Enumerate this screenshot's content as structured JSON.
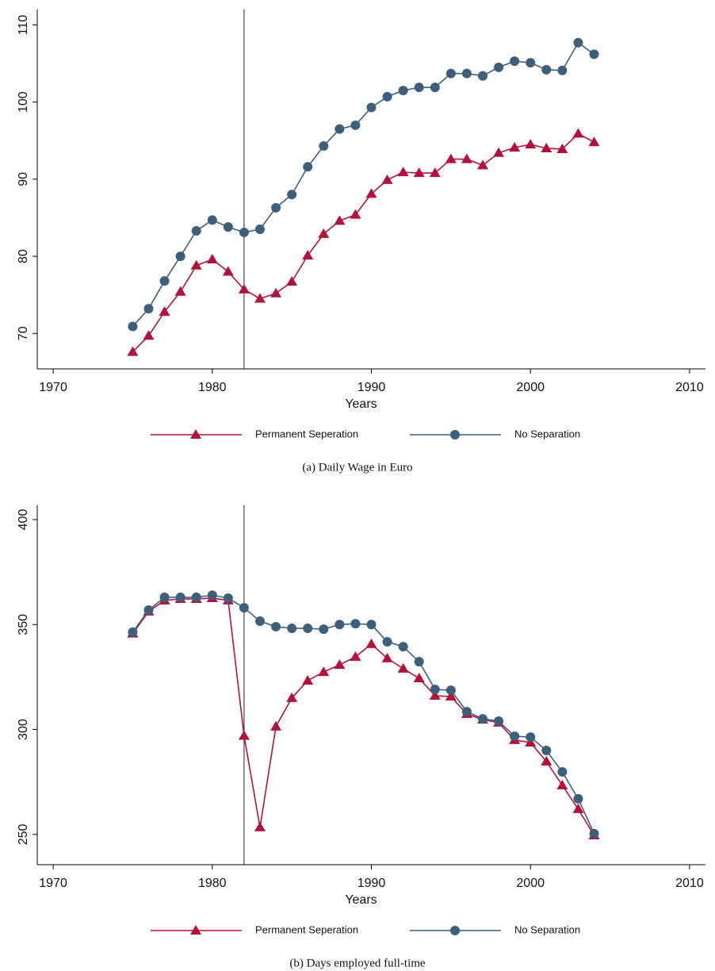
{
  "chart_data": [
    {
      "type": "line",
      "caption": "(a) Daily Wage in Euro",
      "x_label": "Years",
      "x": [
        1975,
        1976,
        1977,
        1978,
        1979,
        1980,
        1981,
        1982,
        1983,
        1984,
        1985,
        1986,
        1987,
        1988,
        1989,
        1990,
        1991,
        1992,
        1993,
        1994,
        1995,
        1996,
        1997,
        1998,
        1999,
        2000,
        2001,
        2002,
        2003,
        2004
      ],
      "series": [
        {
          "name": "Permanent Seperation",
          "color": "#b5123b",
          "marker": "triangle",
          "values": [
            67.6,
            69.7,
            72.8,
            75.4,
            78.8,
            79.6,
            78.0,
            75.7,
            74.5,
            75.2,
            76.7,
            80.1,
            82.9,
            84.6,
            85.4,
            88.1,
            89.9,
            90.9,
            90.8,
            90.8,
            92.6,
            92.6,
            91.8,
            93.4,
            94.1,
            94.5,
            94.0,
            93.9,
            95.9,
            94.8
          ]
        },
        {
          "name": "No Separation",
          "color": "#3e5f7a",
          "marker": "circle",
          "values": [
            70.9,
            73.2,
            76.8,
            80.0,
            83.3,
            84.7,
            83.8,
            83.1,
            83.5,
            86.3,
            88.0,
            91.6,
            94.3,
            96.5,
            97.0,
            99.3,
            100.7,
            101.5,
            101.9,
            101.9,
            103.7,
            103.7,
            103.4,
            104.5,
            105.3,
            105.1,
            104.2,
            104.1,
            107.7,
            106.2
          ]
        }
      ],
      "xlim": [
        1969,
        2011
      ],
      "xticks": [
        1970,
        1980,
        1990,
        2000,
        2010
      ],
      "ylim": [
        65.4,
        112
      ],
      "yticks": [
        70,
        80,
        90,
        100,
        110
      ],
      "vline": 1982,
      "legend": "bottom"
    },
    {
      "type": "line",
      "caption": "(b) Days employed full-time",
      "x_label": "Years",
      "x": [
        1975,
        1976,
        1977,
        1978,
        1979,
        1980,
        1981,
        1982,
        1983,
        1984,
        1985,
        1986,
        1987,
        1988,
        1989,
        1990,
        1991,
        1992,
        1993,
        1994,
        1995,
        1996,
        1997,
        1998,
        1999,
        2000,
        2001,
        2002,
        2003,
        2004
      ],
      "series": [
        {
          "name": "Permanent Seperation",
          "color": "#b5123b",
          "marker": "triangle",
          "values": [
            345.7,
            356.2,
            361.5,
            362.2,
            362.2,
            362.6,
            361.5,
            297,
            253.4,
            301.4,
            315,
            323.3,
            327.4,
            330.8,
            334.6,
            340.7,
            333.9,
            329,
            324.4,
            316.1,
            315.7,
            307.4,
            304.7,
            303.3,
            295,
            293.8,
            284.8,
            273.4,
            262.1,
            249.6
          ]
        },
        {
          "name": "No Separation",
          "color": "#3e5f7a",
          "marker": "circle",
          "values": [
            346.4,
            356.9,
            363,
            363,
            363,
            364,
            362.6,
            358,
            351.6,
            349,
            348.2,
            348.2,
            347.8,
            350,
            350.4,
            350,
            341.8,
            339.5,
            332.3,
            319.1,
            318.7,
            308.5,
            305.1,
            304,
            296.8,
            296.4,
            290,
            279.8,
            267,
            250.4
          ]
        }
      ],
      "xlim": [
        1969,
        2011
      ],
      "xticks": [
        1970,
        1980,
        1990,
        2000,
        2010
      ],
      "ylim": [
        235.6,
        406.8
      ],
      "yticks": [
        250,
        300,
        350,
        400
      ],
      "vline": 1982,
      "legend": "bottom"
    }
  ]
}
